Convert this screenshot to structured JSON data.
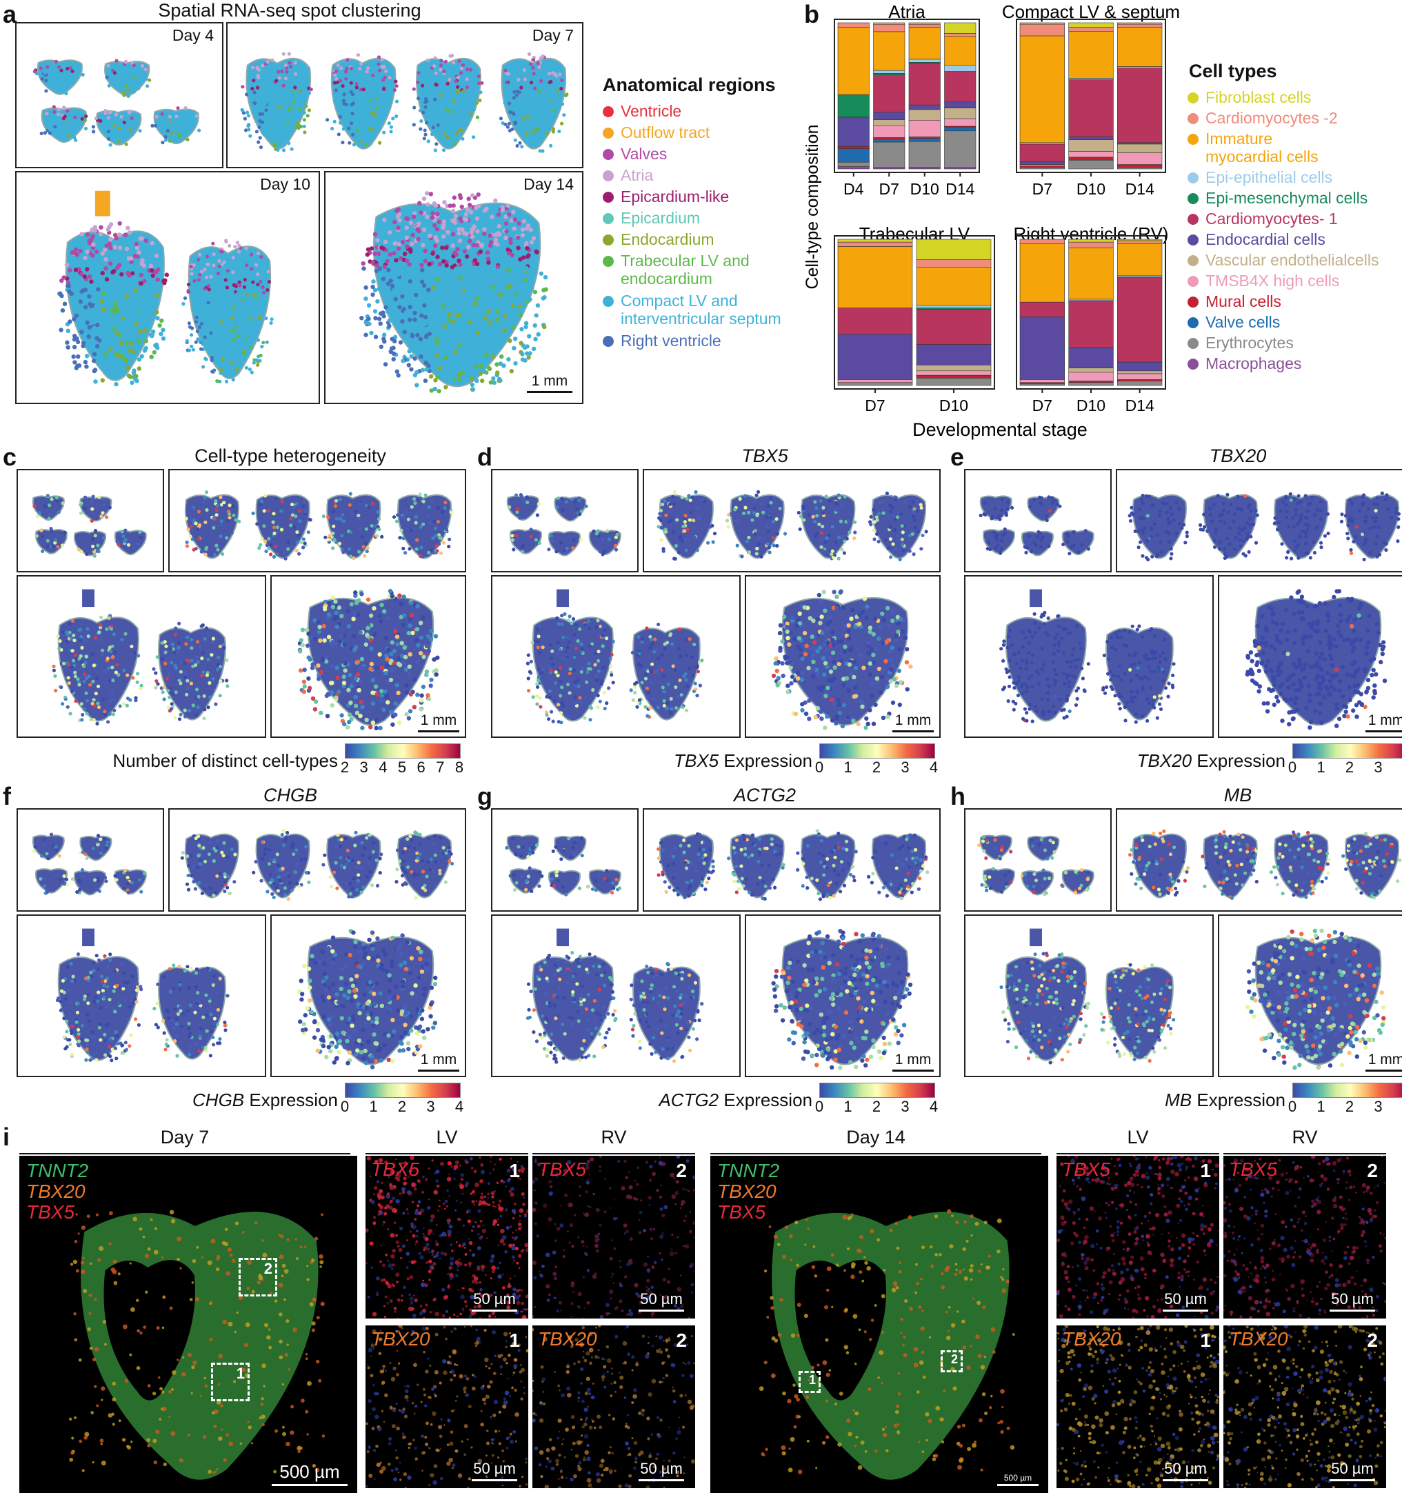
{
  "panel_labels": {
    "a": "a",
    "b": "b",
    "c": "c",
    "d": "d",
    "e": "e",
    "f": "f",
    "g": "g",
    "h": "h",
    "i": "i"
  },
  "panel_a": {
    "title": "Spatial RNA-seq spot clustering",
    "days": [
      "Day 4",
      "Day 7",
      "Day 10",
      "Day 14"
    ],
    "scale": "1 mm",
    "legend_title": "Anatomical regions",
    "legend": [
      {
        "label": "Ventricle",
        "color": "#e8303f"
      },
      {
        "label": "Outflow tract",
        "color": "#f5a623"
      },
      {
        "label": "Valves",
        "color": "#b04aa6"
      },
      {
        "label": "Atria",
        "color": "#c9a3cf"
      },
      {
        "label": "Epicardium-like",
        "color": "#9c1f6e"
      },
      {
        "label": "Epicardium",
        "color": "#62c7b7"
      },
      {
        "label": "Endocardium",
        "color": "#8aa72e"
      },
      {
        "label": "Trabecular LV and\nendocardium",
        "color": "#5cb84a"
      },
      {
        "label": "Compact LV and\ninterventricular septum",
        "color": "#3fb1d8"
      },
      {
        "label": "Right ventricle",
        "color": "#4a6fb8"
      }
    ]
  },
  "panel_b": {
    "ylabel": "Cell-type composition",
    "xlabel": "Developmental stage",
    "legend_title": "Cell types",
    "cell_types": [
      {
        "label": "Fibroblast cells",
        "color": "#d4d424"
      },
      {
        "label": "Cardiomyocytes -2",
        "color": "#f08c7a"
      },
      {
        "label": "Immature\nmyocardial cells",
        "color": "#f5a50a"
      },
      {
        "label": "Epi-epithelial cells",
        "color": "#9ccbea"
      },
      {
        "label": "Epi-mesenchymal cells",
        "color": "#178b5a"
      },
      {
        "label": "Cardiomyocytes- 1",
        "color": "#b8365e"
      },
      {
        "label": "Endocardial cells",
        "color": "#5a4aa0"
      },
      {
        "label": "Vascular endothelialcells",
        "color": "#c4b088"
      },
      {
        "label": "TMSB4X high cells",
        "color": "#f09ab8"
      },
      {
        "label": "Mural cells",
        "color": "#c42030"
      },
      {
        "label": "Valve cells",
        "color": "#1e6bb0"
      },
      {
        "label": "Erythrocytes",
        "color": "#8a8a8a"
      },
      {
        "label": "Macrophages",
        "color": "#8a4f9a"
      }
    ]
  },
  "chart_data": [
    {
      "type": "bar",
      "title": "Atria",
      "stacked": true,
      "categories": [
        "D4",
        "D7",
        "D10",
        "D14"
      ],
      "ylim": [
        0,
        1
      ],
      "series": [
        {
          "name": "Fibroblast cells",
          "values": [
            0.0,
            0.01,
            0.01,
            0.07
          ]
        },
        {
          "name": "Cardiomyocytes -2",
          "values": [
            0.02,
            0.05,
            0.02,
            0.02
          ]
        },
        {
          "name": "Immature myocardial cells",
          "values": [
            0.3,
            0.26,
            0.21,
            0.19
          ]
        },
        {
          "name": "Epi-epithelial cells",
          "values": [
            0.0,
            0.02,
            0.02,
            0.04
          ]
        },
        {
          "name": "Epi-mesenchymal cells",
          "values": [
            0.1,
            0.01,
            0.01,
            0.0
          ]
        },
        {
          "name": "Cardiomyocytes- 1",
          "values": [
            0.0,
            0.25,
            0.27,
            0.2
          ]
        },
        {
          "name": "Endocardial cells",
          "values": [
            0.13,
            0.05,
            0.03,
            0.04
          ]
        },
        {
          "name": "Vascular endothelialcells",
          "values": [
            0.0,
            0.04,
            0.07,
            0.07
          ]
        },
        {
          "name": "TMSB4X high cells",
          "values": [
            0.0,
            0.08,
            0.11,
            0.05
          ]
        },
        {
          "name": "Mural cells",
          "values": [
            0.01,
            0.01,
            0.01,
            0.01
          ]
        },
        {
          "name": "Valve cells",
          "values": [
            0.06,
            0.02,
            0.02,
            0.02
          ]
        },
        {
          "name": "Erythrocytes",
          "values": [
            0.02,
            0.17,
            0.17,
            0.24
          ]
        },
        {
          "name": "Macrophages",
          "values": [
            0.01,
            0.01,
            0.01,
            0.01
          ]
        }
      ]
    },
    {
      "type": "bar",
      "title": "Compact LV & septum",
      "stacked": true,
      "categories": [
        "D7",
        "D10",
        "D14"
      ],
      "ylim": [
        0,
        1
      ],
      "series": [
        {
          "name": "Fibroblast cells",
          "values": [
            0.01,
            0.03,
            0.01
          ]
        },
        {
          "name": "Cardiomyocytes -2",
          "values": [
            0.08,
            0.03,
            0.02
          ]
        },
        {
          "name": "Immature myocardial cells",
          "values": [
            0.73,
            0.32,
            0.27
          ]
        },
        {
          "name": "Epi-epithelial cells",
          "values": [
            0.01,
            0.01,
            0.01
          ]
        },
        {
          "name": "Epi-mesenchymal cells",
          "values": [
            0.0,
            0.0,
            0.0
          ]
        },
        {
          "name": "Cardiomyocytes- 1",
          "values": [
            0.12,
            0.39,
            0.51
          ]
        },
        {
          "name": "Endocardial cells",
          "values": [
            0.02,
            0.02,
            0.01
          ]
        },
        {
          "name": "Vascular endothelialcells",
          "values": [
            0.01,
            0.08,
            0.06
          ]
        },
        {
          "name": "TMSB4X high cells",
          "values": [
            0.0,
            0.04,
            0.08
          ]
        },
        {
          "name": "Mural cells",
          "values": [
            0.01,
            0.02,
            0.02
          ]
        },
        {
          "name": "Valve cells",
          "values": [
            0.0,
            0.0,
            0.0
          ]
        },
        {
          "name": "Erythrocytes",
          "values": [
            0.01,
            0.06,
            0.01
          ]
        },
        {
          "name": "Macrophages",
          "values": [
            0.0,
            0.0,
            0.0
          ]
        }
      ]
    },
    {
      "type": "bar",
      "title": "Trabecular LV",
      "stacked": true,
      "categories": [
        "D7",
        "D10"
      ],
      "ylim": [
        0,
        1
      ],
      "series": [
        {
          "name": "Fibroblast cells",
          "values": [
            0.02,
            0.14
          ]
        },
        {
          "name": "Cardiomyocytes -2",
          "values": [
            0.03,
            0.05
          ]
        },
        {
          "name": "Immature myocardial cells",
          "values": [
            0.42,
            0.26
          ]
        },
        {
          "name": "Epi-epithelial cells",
          "values": [
            0.0,
            0.02
          ]
        },
        {
          "name": "Epi-mesenchymal cells",
          "values": [
            0.0,
            0.01
          ]
        },
        {
          "name": "Cardiomyocytes- 1",
          "values": [
            0.18,
            0.24
          ]
        },
        {
          "name": "Endocardial cells",
          "values": [
            0.31,
            0.14
          ]
        },
        {
          "name": "Vascular endothelialcells",
          "values": [
            0.0,
            0.04
          ]
        },
        {
          "name": "TMSB4X high cells",
          "values": [
            0.02,
            0.03
          ]
        },
        {
          "name": "Mural cells",
          "values": [
            0.0,
            0.02
          ]
        },
        {
          "name": "Valve cells",
          "values": [
            0.0,
            0.0
          ]
        },
        {
          "name": "Erythrocytes",
          "values": [
            0.02,
            0.05
          ]
        },
        {
          "name": "Macrophages",
          "values": [
            0.0,
            0.0
          ]
        }
      ]
    },
    {
      "type": "bar",
      "title": "Right ventricle (RV)",
      "stacked": true,
      "categories": [
        "D7",
        "D10",
        "D14"
      ],
      "ylim": [
        0,
        1
      ],
      "series": [
        {
          "name": "Fibroblast cells",
          "values": [
            0.0,
            0.02,
            0.01
          ]
        },
        {
          "name": "Cardiomyocytes -2",
          "values": [
            0.03,
            0.04,
            0.02
          ]
        },
        {
          "name": "Immature myocardial cells",
          "values": [
            0.4,
            0.35,
            0.22
          ]
        },
        {
          "name": "Epi-epithelial cells",
          "values": [
            0.0,
            0.01,
            0.01
          ]
        },
        {
          "name": "Epi-mesenchymal cells",
          "values": [
            0.0,
            0.0,
            0.0
          ]
        },
        {
          "name": "Cardiomyocytes- 1",
          "values": [
            0.1,
            0.32,
            0.58
          ]
        },
        {
          "name": "Endocardial cells",
          "values": [
            0.43,
            0.14,
            0.06
          ]
        },
        {
          "name": "Vascular endothelialcells",
          "values": [
            0.0,
            0.03,
            0.02
          ]
        },
        {
          "name": "TMSB4X high cells",
          "values": [
            0.02,
            0.06,
            0.04
          ]
        },
        {
          "name": "Mural cells",
          "values": [
            0.01,
            0.01,
            0.01
          ]
        },
        {
          "name": "Valve cells",
          "values": [
            0.0,
            0.0,
            0.0
          ]
        },
        {
          "name": "Erythrocytes",
          "values": [
            0.01,
            0.02,
            0.03
          ]
        },
        {
          "name": "Macrophages",
          "values": [
            0.0,
            0.0,
            0.0
          ]
        }
      ]
    }
  ],
  "feature_panels": [
    {
      "label": "c",
      "title": "Cell-type heterogeneity",
      "italic": false,
      "cbar_label": "Number of distinct cell-types",
      "cbar_label_gene": "",
      "ticks": [
        "2",
        "3",
        "4",
        "5",
        "6",
        "7",
        "8"
      ],
      "scale": "1 mm"
    },
    {
      "label": "d",
      "title": "TBX5",
      "italic": true,
      "cbar_label": "Expression",
      "cbar_label_gene": "TBX5",
      "ticks": [
        "0",
        "1",
        "2",
        "3",
        "4"
      ],
      "scale": "1 mm"
    },
    {
      "label": "e",
      "title": "TBX20",
      "italic": true,
      "cbar_label": "Expression",
      "cbar_label_gene": "TBX20",
      "ticks": [
        "0",
        "1",
        "2",
        "3",
        "4"
      ],
      "scale": "1 mm"
    },
    {
      "label": "f",
      "title": "CHGB",
      "italic": true,
      "cbar_label": "Expression",
      "cbar_label_gene": "CHGB",
      "ticks": [
        "0",
        "1",
        "2",
        "3",
        "4"
      ],
      "scale": "1 mm"
    },
    {
      "label": "g",
      "title": "ACTG2",
      "italic": true,
      "cbar_label": "Expression",
      "cbar_label_gene": "ACTG2",
      "ticks": [
        "0",
        "1",
        "2",
        "3",
        "4"
      ],
      "scale": "1 mm"
    },
    {
      "label": "h",
      "title": "MB",
      "italic": true,
      "cbar_label": "Expression",
      "cbar_label_gene": "MB",
      "ticks": [
        "0",
        "1",
        "2",
        "3",
        "4"
      ],
      "scale": "1 mm"
    }
  ],
  "panel_i": {
    "day7": "Day 7",
    "day14": "Day 14",
    "lv": "LV",
    "rv": "RV",
    "markers": [
      "TNNT2",
      "TBX20",
      "TBX5"
    ],
    "marker_colors": [
      "#3fbf6a",
      "#f07a2a",
      "#e8283a"
    ],
    "tbx5": "TBX5",
    "tbx20": "TBX20",
    "box1": "1",
    "box2": "2",
    "scale_500": "500 µm",
    "scale_500_small": "500 µm",
    "scale_50": "50 µm"
  }
}
